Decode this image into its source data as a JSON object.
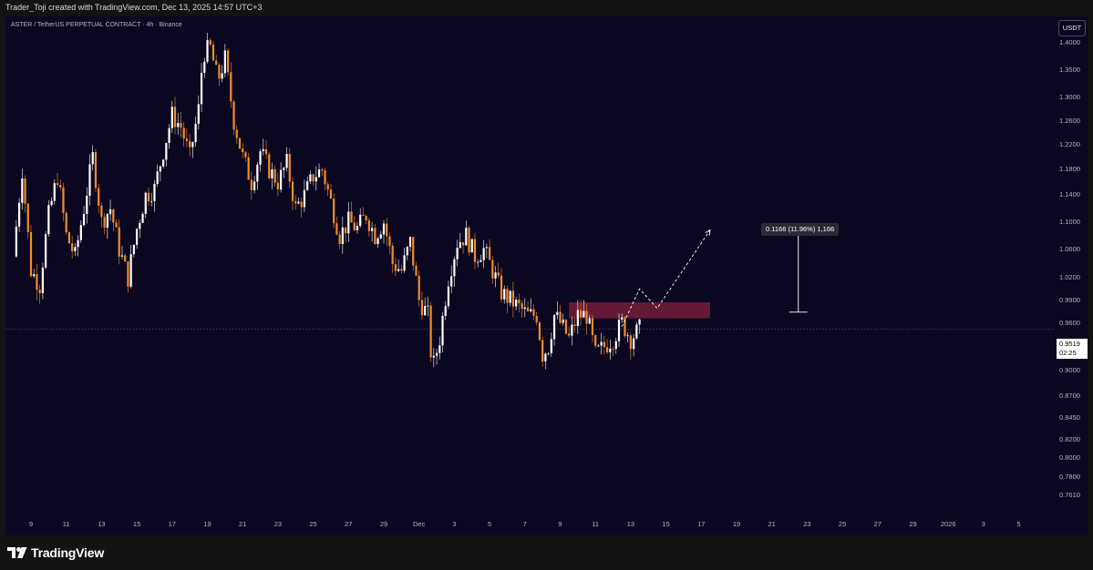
{
  "header": {
    "credit": "Trader_Toji created with TradingView.com, Dec 13, 2025 14:57 UTC+3"
  },
  "symbol": {
    "title": "ASTER / TetherUS PERPETUAL CONTRACT · 4h · Binance"
  },
  "unit_button": "USDT",
  "colors": {
    "background": "#0b0720",
    "up": "#ffffff",
    "down": "#f28c28",
    "zone": "#7a1e3a"
  },
  "chart_data": {
    "type": "candlestick",
    "interval": "4h",
    "currency": "USDT",
    "y_axis": {
      "scale": "log",
      "range": [
        0.745,
        1.45
      ],
      "ticks": [
        "1.4000",
        "1.3500",
        "1.3000",
        "1.2600",
        "1.2200",
        "1.1800",
        "1.1400",
        "1.1000",
        "1.0600",
        "1.0200",
        "0.9900",
        "0.9600",
        "0.9300",
        "0.9000",
        "0.8700",
        "0.8450",
        "0.8200",
        "0.8000",
        "0.7800",
        "0.7610"
      ]
    },
    "x_axis": {
      "ticks": [
        "9",
        "11",
        "13",
        "15",
        "17",
        "19",
        "21",
        "23",
        "25",
        "27",
        "29",
        "Dec",
        "3",
        "5",
        "7",
        "9",
        "11",
        "13",
        "15",
        "17",
        "19",
        "21",
        "23",
        "25",
        "27",
        "29",
        "2026",
        "3",
        "5"
      ]
    },
    "price_path": [
      [
        "Nov 8 00:00",
        1.05
      ],
      [
        "Nov 8 12:00",
        1.18
      ],
      [
        "Nov 9 00:00",
        1.03
      ],
      [
        "Nov 9 12:00",
        1.01
      ],
      [
        "Nov 10 00:00",
        1.11
      ],
      [
        "Nov 10 12:00",
        1.17
      ],
      [
        "Nov 11 00:00",
        1.08
      ],
      [
        "Nov 11 12:00",
        1.05
      ],
      [
        "Nov 12 00:00",
        1.12
      ],
      [
        "Nov 12 12:00",
        1.2
      ],
      [
        "Nov 13 00:00",
        1.1
      ],
      [
        "Nov 13 12:00",
        1.12
      ],
      [
        "Nov 14 00:00",
        1.06
      ],
      [
        "Nov 14 12:00",
        1.02
      ],
      [
        "Nov 15 00:00",
        1.09
      ],
      [
        "Nov 15 12:00",
        1.14
      ],
      [
        "Nov 16 00:00",
        1.15
      ],
      [
        "Nov 16 12:00",
        1.21
      ],
      [
        "Nov 17 00:00",
        1.27
      ],
      [
        "Nov 17 12:00",
        1.25
      ],
      [
        "Nov 18 00:00",
        1.2
      ],
      [
        "Nov 18 12:00",
        1.28
      ],
      [
        "Nov 18 18:00",
        1.38
      ],
      [
        "Nov 19 04:00",
        1.39
      ],
      [
        "Nov 19 14:00",
        1.33
      ],
      [
        "Nov 20 00:00",
        1.37
      ],
      [
        "Nov 20 12:00",
        1.26
      ],
      [
        "Nov 21 00:00",
        1.2
      ],
      [
        "Nov 21 12:00",
        1.16
      ],
      [
        "Nov 22 00:00",
        1.21
      ],
      [
        "Nov 22 12:00",
        1.18
      ],
      [
        "Nov 23 00:00",
        1.16
      ],
      [
        "Nov 23 12:00",
        1.19
      ],
      [
        "Nov 24 00:00",
        1.12
      ],
      [
        "Nov 24 12:00",
        1.14
      ],
      [
        "Nov 25 00:00",
        1.17
      ],
      [
        "Nov 25 12:00",
        1.18
      ],
      [
        "Nov 26 00:00",
        1.13
      ],
      [
        "Nov 26 12:00",
        1.08
      ],
      [
        "Nov 27 00:00",
        1.1
      ],
      [
        "Nov 27 12:00",
        1.09
      ],
      [
        "Nov 28 00:00",
        1.11
      ],
      [
        "Nov 28 12:00",
        1.08
      ],
      [
        "Nov 29 00:00",
        1.1
      ],
      [
        "Nov 29 12:00",
        1.04
      ],
      [
        "Nov 30 00:00",
        1.03
      ],
      [
        "Nov 30 12:00",
        1.07
      ],
      [
        "Dec 1 00:00",
        0.99
      ],
      [
        "Dec 1 12:00",
        0.97
      ],
      [
        "Dec 1 18:00",
        0.9
      ],
      [
        "Dec 2 04:00",
        0.94
      ],
      [
        "Dec 2 16:00",
        1.02
      ],
      [
        "Dec 3 04:00",
        1.07
      ],
      [
        "Dec 3 16:00",
        1.08
      ],
      [
        "Dec 4 04:00",
        1.05
      ],
      [
        "Dec 4 16:00",
        1.06
      ],
      [
        "Dec 5 04:00",
        1.03
      ],
      [
        "Dec 5 16:00",
        1.0
      ],
      [
        "Dec 6 04:00",
        0.99
      ],
      [
        "Dec 6 16:00",
        0.98
      ],
      [
        "Dec 7 04:00",
        0.97
      ],
      [
        "Dec 7 16:00",
        0.97
      ],
      [
        "Dec 8 00:00",
        0.92
      ],
      [
        "Dec 8 08:00",
        0.93
      ],
      [
        "Dec 8 16:00",
        0.97
      ],
      [
        "Dec 9 00:00",
        0.96
      ],
      [
        "Dec 9 12:00",
        0.94
      ],
      [
        "Dec 10 00:00",
        0.97
      ],
      [
        "Dec 10 12:00",
        0.97
      ],
      [
        "Dec 11 00:00",
        0.92
      ],
      [
        "Dec 11 12:00",
        0.93
      ],
      [
        "Dec 12 00:00",
        0.94
      ],
      [
        "Dec 12 12:00",
        0.96
      ],
      [
        "Dec 13 00:00",
        0.94
      ],
      [
        "Dec 13 12:00",
        0.9519
      ]
    ],
    "last_price": "0.9519",
    "countdown": "02:25",
    "resistance_zone": {
      "from": "Dec 9 12:00",
      "to": "Dec 17 12:00",
      "low": 0.966,
      "high": 0.987
    },
    "projection_path": [
      [
        "Dec 12 12:00",
        0.955
      ],
      [
        "Dec 13 12:00",
        1.005
      ],
      [
        "Dec 14 12:00",
        0.979
      ],
      [
        "Dec 17 12:00",
        1.088
      ]
    ],
    "measure": {
      "label": "0.1166 (11.96%) 1,166",
      "at": "Dec 22 12:00",
      "from": 0.974,
      "to": 1.091
    }
  },
  "footer": {
    "brand": "TradingView"
  }
}
